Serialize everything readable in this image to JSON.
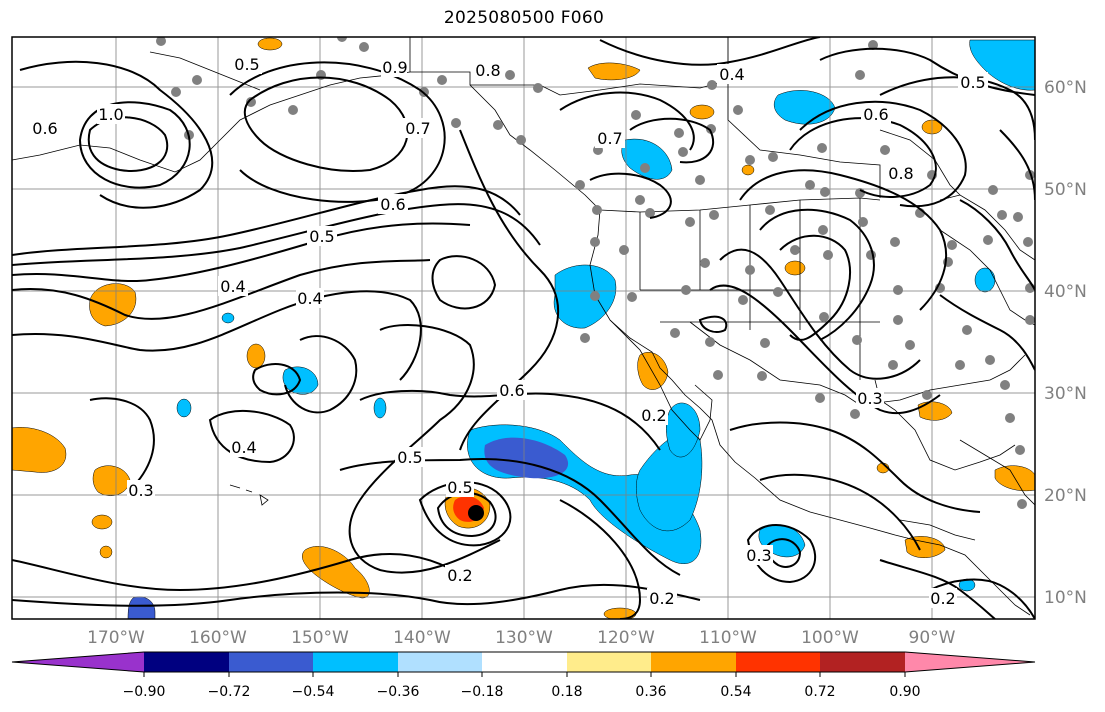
{
  "title": "2025080500 F060",
  "map": {
    "lon_ticks": [
      "170°W",
      "160°W",
      "150°W",
      "140°W",
      "130°W",
      "120°W",
      "110°W",
      "100°W",
      "90°W"
    ],
    "lat_ticks": [
      "60°N",
      "50°N",
      "40°N",
      "30°N",
      "20°N",
      "10°N"
    ],
    "contour_labels": [
      "0.5",
      "0.9",
      "0.8",
      "0.7",
      "0.6",
      "1.0",
      "0.4",
      "0.5",
      "0.6",
      "0.4",
      "0.4",
      "0.3",
      "0.5",
      "0.6",
      "0.5",
      "0.2",
      "0.2",
      "0.3",
      "0.2",
      "0.7",
      "0.3",
      "0.2",
      "0.4",
      "0.8",
      "0.6",
      "0.5"
    ],
    "colors": {
      "contour": "#000000",
      "grid": "#808080",
      "station_dot": "#808080",
      "negative_fill": "#00bfff",
      "strong_negative_fill": "#3a5bd0",
      "positive_fill": "#ffa500",
      "strong_positive_fill": "#ff3300"
    }
  },
  "colorbar": {
    "colors": [
      "#9932cc",
      "#000080",
      "#3a5bd0",
      "#00bfff",
      "#b0e0ff",
      "#ffffff",
      "#ffec8b",
      "#ffa500",
      "#ff3300",
      "#b22222",
      "#ff88aa"
    ],
    "tick_labels": [
      "−0.90",
      "−0.72",
      "−0.54",
      "−0.36",
      "−0.18",
      "0.18",
      "0.36",
      "0.54",
      "0.72",
      "0.90"
    ]
  }
}
